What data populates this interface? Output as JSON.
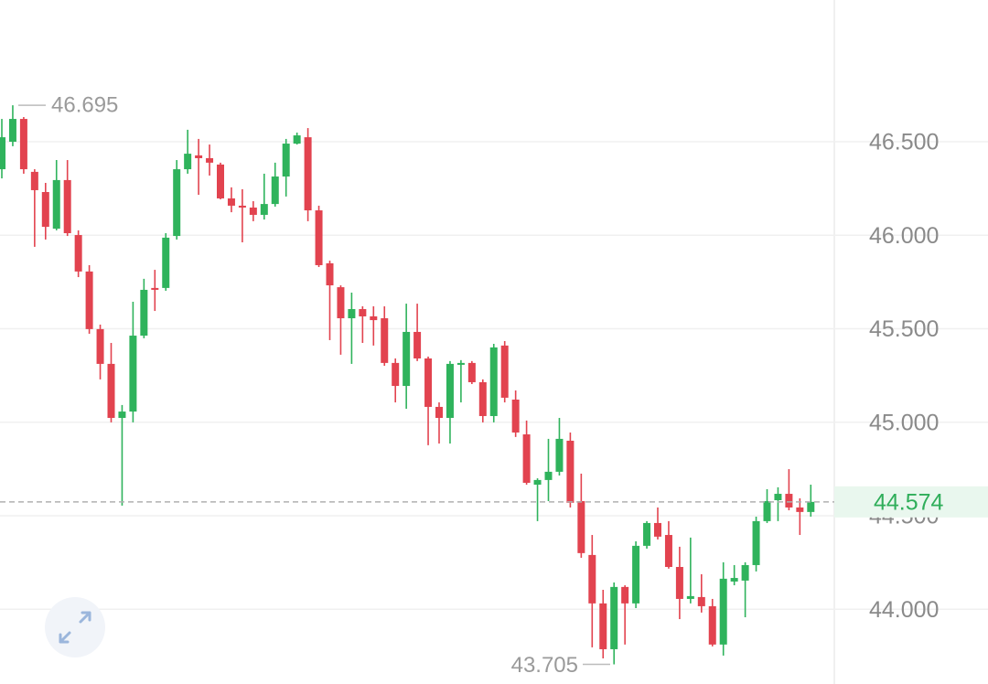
{
  "chart_data": {
    "type": "candlestick",
    "ylim": [
      43.6,
      47.258
    ],
    "yticks": [
      {
        "value": 44.0,
        "label": "44.000"
      },
      {
        "value": 44.5,
        "label": "44.500"
      },
      {
        "value": 45.0,
        "label": "45.000"
      },
      {
        "value": 45.5,
        "label": "45.500"
      },
      {
        "value": 46.0,
        "label": "46.000"
      },
      {
        "value": 46.5,
        "label": "46.500"
      }
    ],
    "grid": true,
    "up_color": "#2fb35c",
    "down_color": "#e2434f",
    "max_label": 46.695,
    "min_label": 43.705,
    "current_price": 44.574,
    "open": [
      46.353,
      46.5,
      46.622,
      46.339,
      46.231,
      46.035,
      46.295,
      46.001,
      45.806,
      45.498,
      45.312,
      45.023,
      45.057,
      45.463,
      45.718,
      45.718,
      45.996,
      46.353,
      46.427,
      46.412,
      46.378,
      46.197,
      46.158,
      46.148,
      46.109,
      46.167,
      46.314,
      46.49,
      46.524,
      46.133,
      45.85,
      45.722,
      45.556,
      45.605,
      45.566,
      45.556,
      45.317,
      45.194,
      45.483,
      45.341,
      45.082,
      45.023,
      45.307,
      45.317,
      45.214,
      45.033,
      45.41,
      45.121,
      44.935,
      44.666,
      44.691,
      44.735,
      44.901,
      44.578,
      44.29,
      44.031,
      43.786,
      44.119,
      44.031,
      44.339,
      44.461,
      44.397,
      44.226,
      44.055,
      44.065,
      44.016,
      43.811,
      44.148,
      44.153,
      44.236,
      44.471,
      44.583,
      44.617,
      44.544,
      44.52
    ],
    "high": [
      46.622,
      46.695,
      46.632,
      46.353,
      46.28,
      46.402,
      46.402,
      46.026,
      45.84,
      45.522,
      45.424,
      45.092,
      45.644,
      45.767,
      45.815,
      46.011,
      46.402,
      46.564,
      46.515,
      46.485,
      46.388,
      46.256,
      46.246,
      46.182,
      46.329,
      46.388,
      46.515,
      46.549,
      46.573,
      46.158,
      45.864,
      45.732,
      45.693,
      45.62,
      45.62,
      45.62,
      45.341,
      45.634,
      45.634,
      45.351,
      45.106,
      45.327,
      45.332,
      45.327,
      45.229,
      45.419,
      45.434,
      45.17,
      45.009,
      44.7,
      44.911,
      45.023,
      44.945,
      44.725,
      44.397,
      44.104,
      44.143,
      44.128,
      44.363,
      44.471,
      44.544,
      44.471,
      44.334,
      44.383,
      44.187,
      44.055,
      44.251,
      44.236,
      44.251,
      44.495,
      44.642,
      44.652,
      44.749,
      44.593,
      44.666
    ],
    "low": [
      46.304,
      46.476,
      46.329,
      45.938,
      45.977,
      46.026,
      45.996,
      45.776,
      45.473,
      45.229,
      44.999,
      44.554,
      44.999,
      45.449,
      45.595,
      45.703,
      45.977,
      46.329,
      46.216,
      46.319,
      46.192,
      46.123,
      45.962,
      46.075,
      46.084,
      46.153,
      46.207,
      46.485,
      46.075,
      45.83,
      45.439,
      45.361,
      45.312,
      45.424,
      45.41,
      45.302,
      45.106,
      45.072,
      45.327,
      44.877,
      44.886,
      44.886,
      45.106,
      45.204,
      44.999,
      44.999,
      45.106,
      44.921,
      44.666,
      44.471,
      44.578,
      44.715,
      44.544,
      44.275,
      43.796,
      43.737,
      43.705,
      43.811,
      44.006,
      44.324,
      44.373,
      44.217,
      43.947,
      44.031,
      43.982,
      43.801,
      43.752,
      44.128,
      43.957,
      44.202,
      44.461,
      44.471,
      44.529,
      44.397,
      44.495
    ],
    "close": [
      46.524,
      46.622,
      46.353,
      46.241,
      46.045,
      46.295,
      46.011,
      45.806,
      45.498,
      45.312,
      45.023,
      45.057,
      45.463,
      45.708,
      45.708,
      45.987,
      46.353,
      46.436,
      46.412,
      46.388,
      46.197,
      46.158,
      46.148,
      46.109,
      46.167,
      46.314,
      46.49,
      46.534,
      46.133,
      45.84,
      45.732,
      45.556,
      45.605,
      45.566,
      45.546,
      45.317,
      45.194,
      45.483,
      45.341,
      45.082,
      45.023,
      45.312,
      45.317,
      45.214,
      45.033,
      45.4,
      45.131,
      44.945,
      44.676,
      44.691,
      44.735,
      44.911,
      44.569,
      44.3,
      44.031,
      43.786,
      44.119,
      44.031,
      44.339,
      44.461,
      44.388,
      44.226,
      44.055,
      44.07,
      44.016,
      43.811,
      44.163,
      44.167,
      44.236,
      44.471,
      44.578,
      44.617,
      44.544,
      44.52,
      44.574
    ]
  }
}
